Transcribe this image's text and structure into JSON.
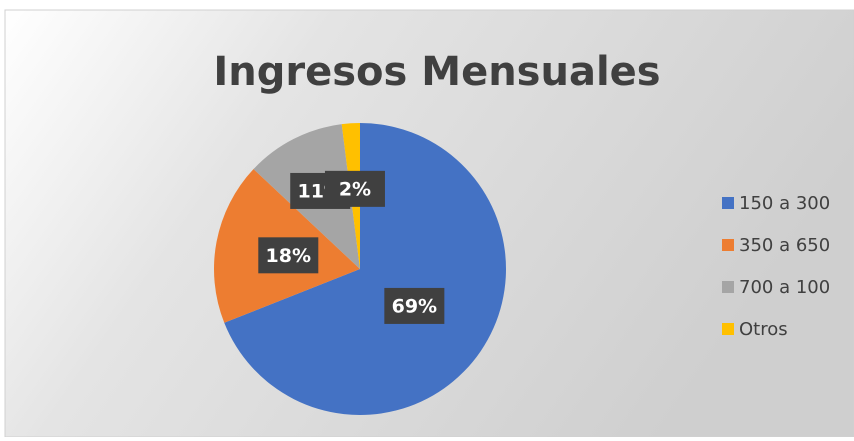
{
  "chart_data": {
    "type": "pie",
    "title": "Ingresos Mensuales",
    "categories": [
      "150 a 300",
      "350 a 650",
      "700 a 100",
      "Otros"
    ],
    "values": [
      69,
      18,
      11,
      2
    ],
    "value_labels": [
      "69%",
      "18%",
      "11%",
      "2%"
    ],
    "colors": [
      "#4472c4",
      "#ed7d31",
      "#a5a5a5",
      "#ffc000"
    ],
    "legend": "right"
  }
}
